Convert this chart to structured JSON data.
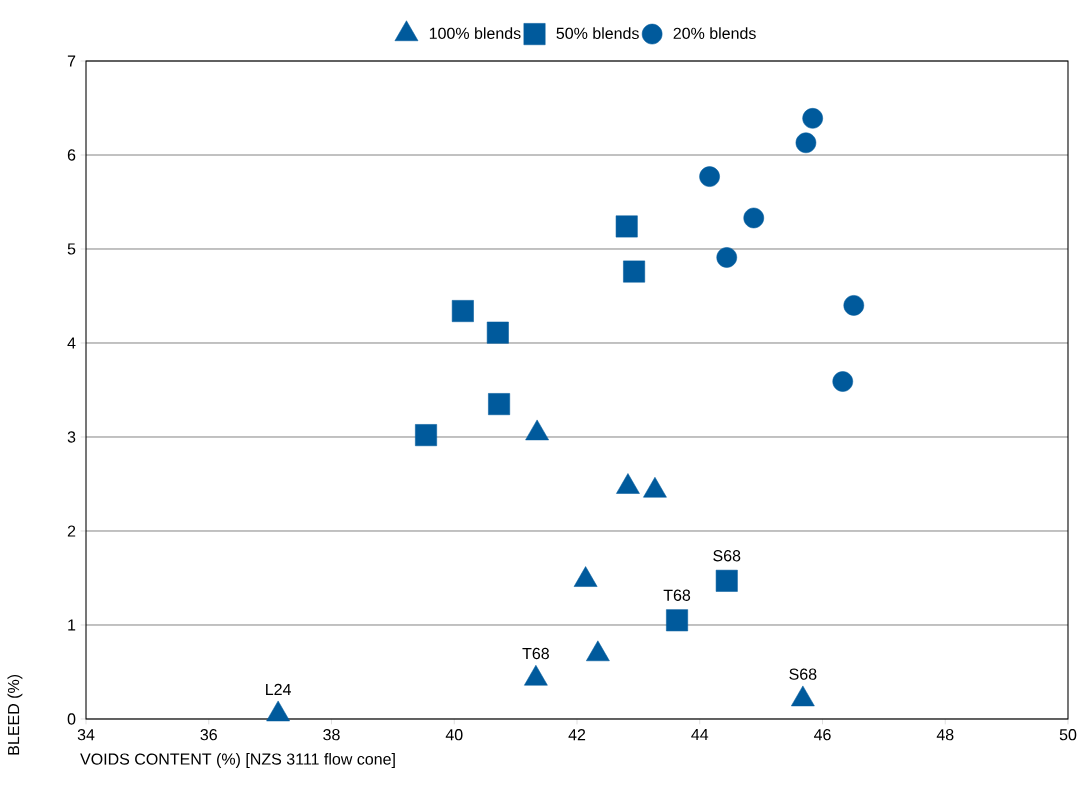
{
  "chart_data": {
    "type": "scatter",
    "xlabel": "VOIDS CONTENT (%) [NZS 3111 flow cone]",
    "ylabel": "BLEED (%)",
    "xlim": [
      34,
      50
    ],
    "xticks": [
      34,
      36,
      38,
      40,
      42,
      44,
      46,
      48,
      50
    ],
    "ylim": [
      0,
      7
    ],
    "yticks": [
      0,
      1,
      2,
      3,
      4,
      5,
      6,
      7
    ],
    "grid": "y",
    "legend": "top",
    "series": [
      {
        "name": "100% blends",
        "color": "#005a9c",
        "marker": "triangle",
        "x": [
          37.13,
          41.33,
          42.34,
          42.14,
          42.83,
          43.27,
          41.35,
          45.68
        ],
        "values": [
          0.05,
          0.43,
          0.69,
          1.48,
          2.47,
          2.43,
          3.04,
          0.21
        ]
      },
      {
        "name": "50% blends",
        "color": "#005a9c",
        "marker": "square",
        "x": [
          39.54,
          40.73,
          40.71,
          40.14,
          42.81,
          42.93,
          43.63,
          44.44
        ],
        "values": [
          3.02,
          3.35,
          4.11,
          4.34,
          5.24,
          4.76,
          1.05,
          1.47
        ]
      },
      {
        "name": "20% blends",
        "color": "#005a9c",
        "marker": "circle",
        "x": [
          45.84,
          45.73,
          44.16,
          44.88,
          44.44,
          46.51,
          46.33
        ],
        "values": [
          6.39,
          6.13,
          5.77,
          5.33,
          4.91,
          4.4,
          3.59
        ]
      }
    ],
    "annotations": [
      {
        "text": "L24",
        "x": 37.13,
        "y": 0.05
      },
      {
        "text": "T68",
        "x": 41.33,
        "y": 0.43
      },
      {
        "text": "S68",
        "x": 45.68,
        "y": 0.21
      },
      {
        "text": "T68",
        "x": 43.63,
        "y": 1.05
      },
      {
        "text": "S68",
        "x": 44.44,
        "y": 1.47
      }
    ]
  }
}
